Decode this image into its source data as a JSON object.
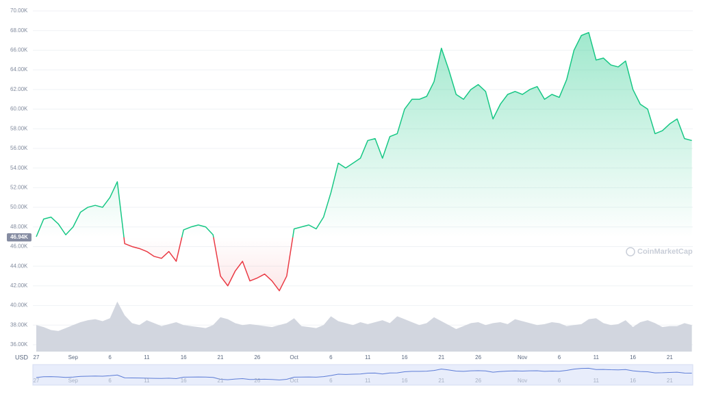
{
  "chart_data": {
    "type": "line",
    "axis_label": "USD",
    "watermark": "CoinMarketCap",
    "baseline": {
      "value": 46940,
      "label": "46.94K"
    },
    "color_above": "#16c784",
    "color_below": "#ea3943",
    "volume_color": "#cdd1dc",
    "categories": [
      "27",
      null,
      null,
      null,
      null,
      "Sep",
      null,
      null,
      null,
      null,
      "6",
      null,
      null,
      null,
      null,
      "11",
      null,
      null,
      null,
      null,
      "16",
      null,
      null,
      null,
      null,
      "21",
      null,
      null,
      null,
      null,
      "26",
      null,
      null,
      null,
      null,
      "Oct",
      null,
      null,
      null,
      null,
      "6",
      null,
      null,
      null,
      null,
      "11",
      null,
      null,
      null,
      null,
      "16",
      null,
      null,
      null,
      null,
      "21",
      null,
      null,
      null,
      null,
      "26",
      null,
      null,
      null,
      null,
      null,
      "Nov",
      null,
      null,
      null,
      null,
      "6",
      null,
      null,
      null,
      null,
      "11",
      null,
      null,
      null,
      null,
      "16",
      null,
      null,
      null,
      null,
      "21",
      null,
      null,
      null
    ],
    "values": [
      47000,
      48800,
      49000,
      48300,
      47200,
      48000,
      49500,
      50000,
      50200,
      50000,
      51000,
      52600,
      46300,
      46000,
      45800,
      45500,
      45000,
      44800,
      45500,
      44500,
      47700,
      48000,
      48200,
      48000,
      47200,
      43000,
      42000,
      43500,
      44500,
      42500,
      42800,
      43200,
      42500,
      41500,
      43000,
      47800,
      48000,
      48200,
      47800,
      49000,
      51500,
      54500,
      54000,
      54500,
      55000,
      56800,
      57000,
      55000,
      57200,
      57500,
      60000,
      61000,
      61000,
      61300,
      62800,
      66200,
      64000,
      61500,
      61000,
      62000,
      62500,
      61800,
      59000,
      60500,
      61500,
      61800,
      61500,
      62000,
      62300,
      61000,
      61500,
      61200,
      63000,
      66000,
      67500,
      67800,
      65000,
      65200,
      64500,
      64300,
      64900,
      62000,
      60500,
      60000,
      57500,
      57800,
      58500,
      59000,
      57000,
      56800
    ],
    "volume": [
      38000,
      37800,
      37500,
      37400,
      37700,
      38000,
      38300,
      38500,
      38600,
      38400,
      38700,
      40400,
      39000,
      38200,
      38000,
      38500,
      38200,
      37900,
      38100,
      38300,
      38000,
      37900,
      37800,
      37700,
      38000,
      38800,
      38600,
      38200,
      38000,
      38100,
      38000,
      37900,
      37800,
      38000,
      38200,
      38700,
      37900,
      37800,
      37700,
      38000,
      38900,
      38400,
      38200,
      38000,
      38300,
      38100,
      38300,
      38500,
      38200,
      38900,
      38600,
      38300,
      38000,
      38200,
      38800,
      38400,
      38000,
      37600,
      37900,
      38200,
      38300,
      38000,
      38200,
      38300,
      38100,
      38600,
      38400,
      38200,
      38000,
      38100,
      38300,
      38200,
      37900,
      38000,
      38100,
      38600,
      38700,
      38200,
      38000,
      38100,
      38500,
      37800,
      38300,
      38500,
      38200,
      37800,
      37900,
      37900,
      38200,
      38000
    ],
    "ylim": [
      36000,
      70000
    ],
    "yticks": [
      {
        "value": 36000,
        "label": "36.00K"
      },
      {
        "value": 38000,
        "label": "38.00K"
      },
      {
        "value": 40000,
        "label": "40.00K"
      },
      {
        "value": 42000,
        "label": "42.00K"
      },
      {
        "value": 44000,
        "label": "44.00K"
      },
      {
        "value": 46000,
        "label": "46.00K"
      },
      {
        "value": 48000,
        "label": "48.00K"
      },
      {
        "value": 50000,
        "label": "50.00K"
      },
      {
        "value": 52000,
        "label": "52.00K"
      },
      {
        "value": 54000,
        "label": "54.00K"
      },
      {
        "value": 56000,
        "label": "56.00K"
      },
      {
        "value": 58000,
        "label": "58.00K"
      },
      {
        "value": 60000,
        "label": "60.00K"
      },
      {
        "value": 62000,
        "label": "62.00K"
      },
      {
        "value": 64000,
        "label": "64.00K"
      },
      {
        "value": 66000,
        "label": "66.00K"
      },
      {
        "value": 68000,
        "label": "68.00K"
      },
      {
        "value": 70000,
        "label": "70.00K"
      }
    ],
    "grid": true
  }
}
